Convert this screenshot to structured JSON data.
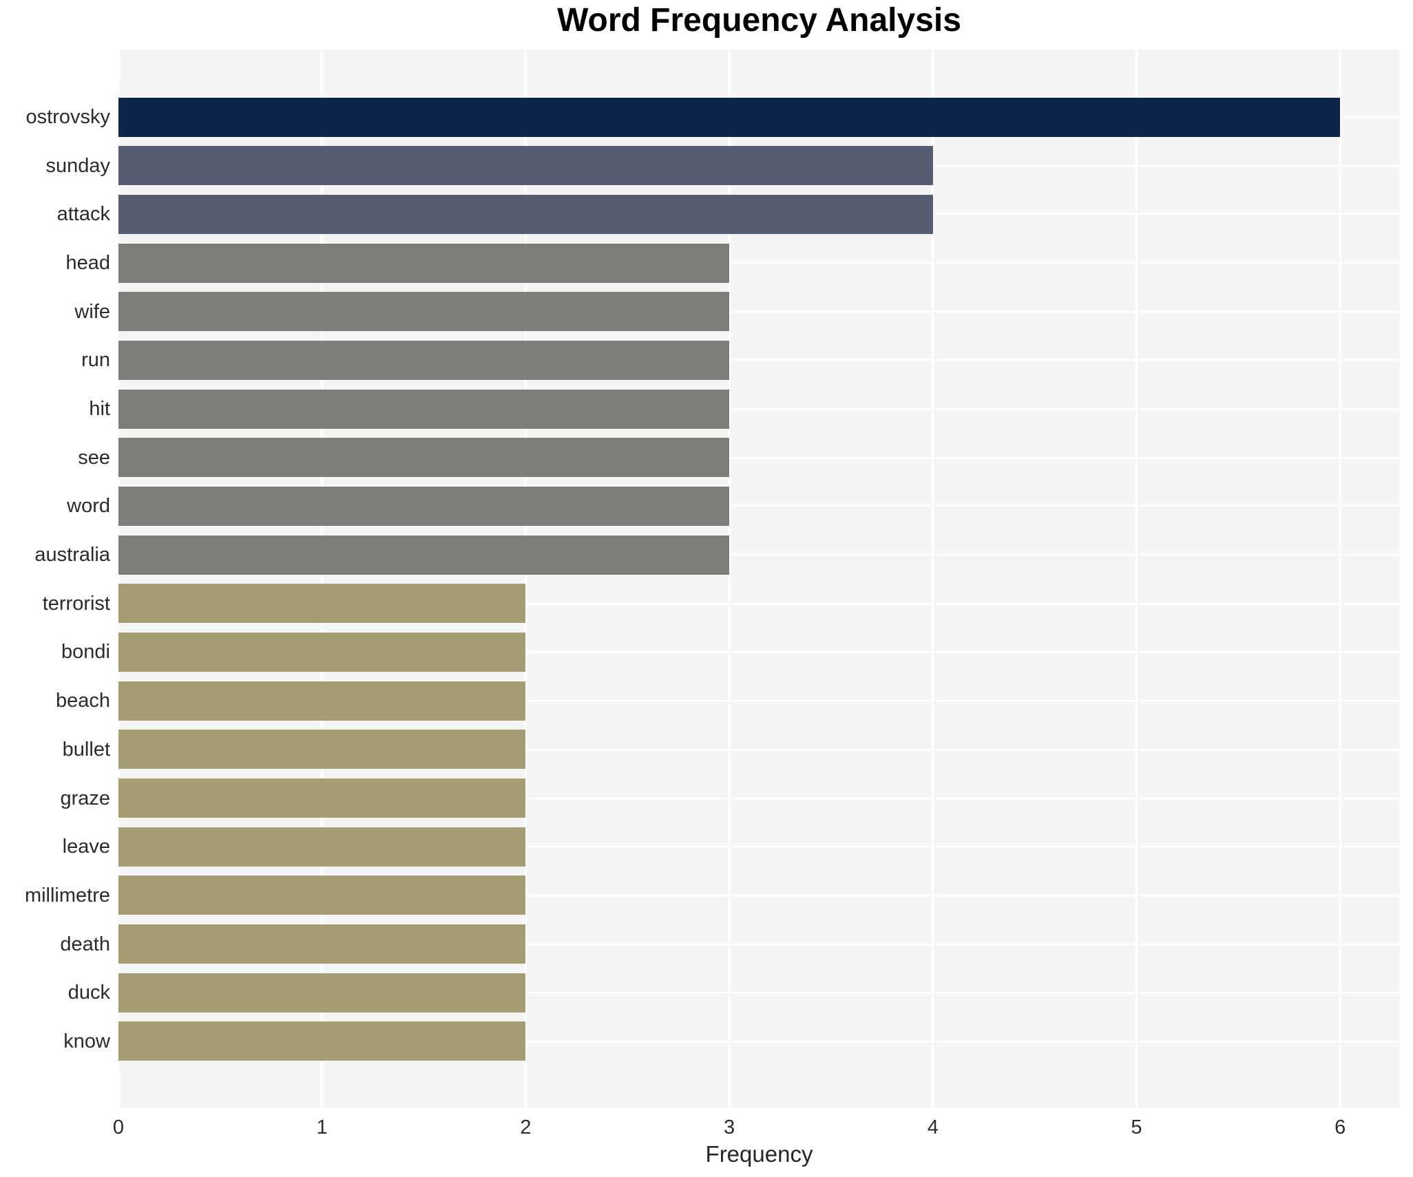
{
  "title": "Word Frequency Analysis",
  "xlabel": "Frequency",
  "chart_data": {
    "type": "bar",
    "orientation": "horizontal",
    "title": "Word Frequency Analysis",
    "xlabel": "Frequency",
    "ylabel": "",
    "categories": [
      "ostrovsky",
      "sunday",
      "attack",
      "head",
      "wife",
      "run",
      "hit",
      "see",
      "word",
      "australia",
      "terrorist",
      "bondi",
      "beach",
      "bullet",
      "graze",
      "leave",
      "millimetre",
      "death",
      "duck",
      "know"
    ],
    "values": [
      6,
      4,
      4,
      3,
      3,
      3,
      3,
      3,
      3,
      3,
      2,
      2,
      2,
      2,
      2,
      2,
      2,
      2,
      2,
      2
    ],
    "xticks": [
      0,
      1,
      2,
      3,
      4,
      5,
      6
    ],
    "xlim": [
      0,
      6.3
    ],
    "grid": "white gridlines on light-gray panel, vertical at each x tick, horizontal at each category center",
    "legend": "none",
    "colors": {
      "value_6": "#0e2449",
      "value_4": "#575d70",
      "value_3": "#7e7d7a",
      "value_2": "#a59d73",
      "panel_bg": "#f5f5f6",
      "figure_bg": "#ffffff",
      "gridline": "#ffffff",
      "tick_text": "#2b2b2b",
      "title_text": "#000000"
    }
  }
}
